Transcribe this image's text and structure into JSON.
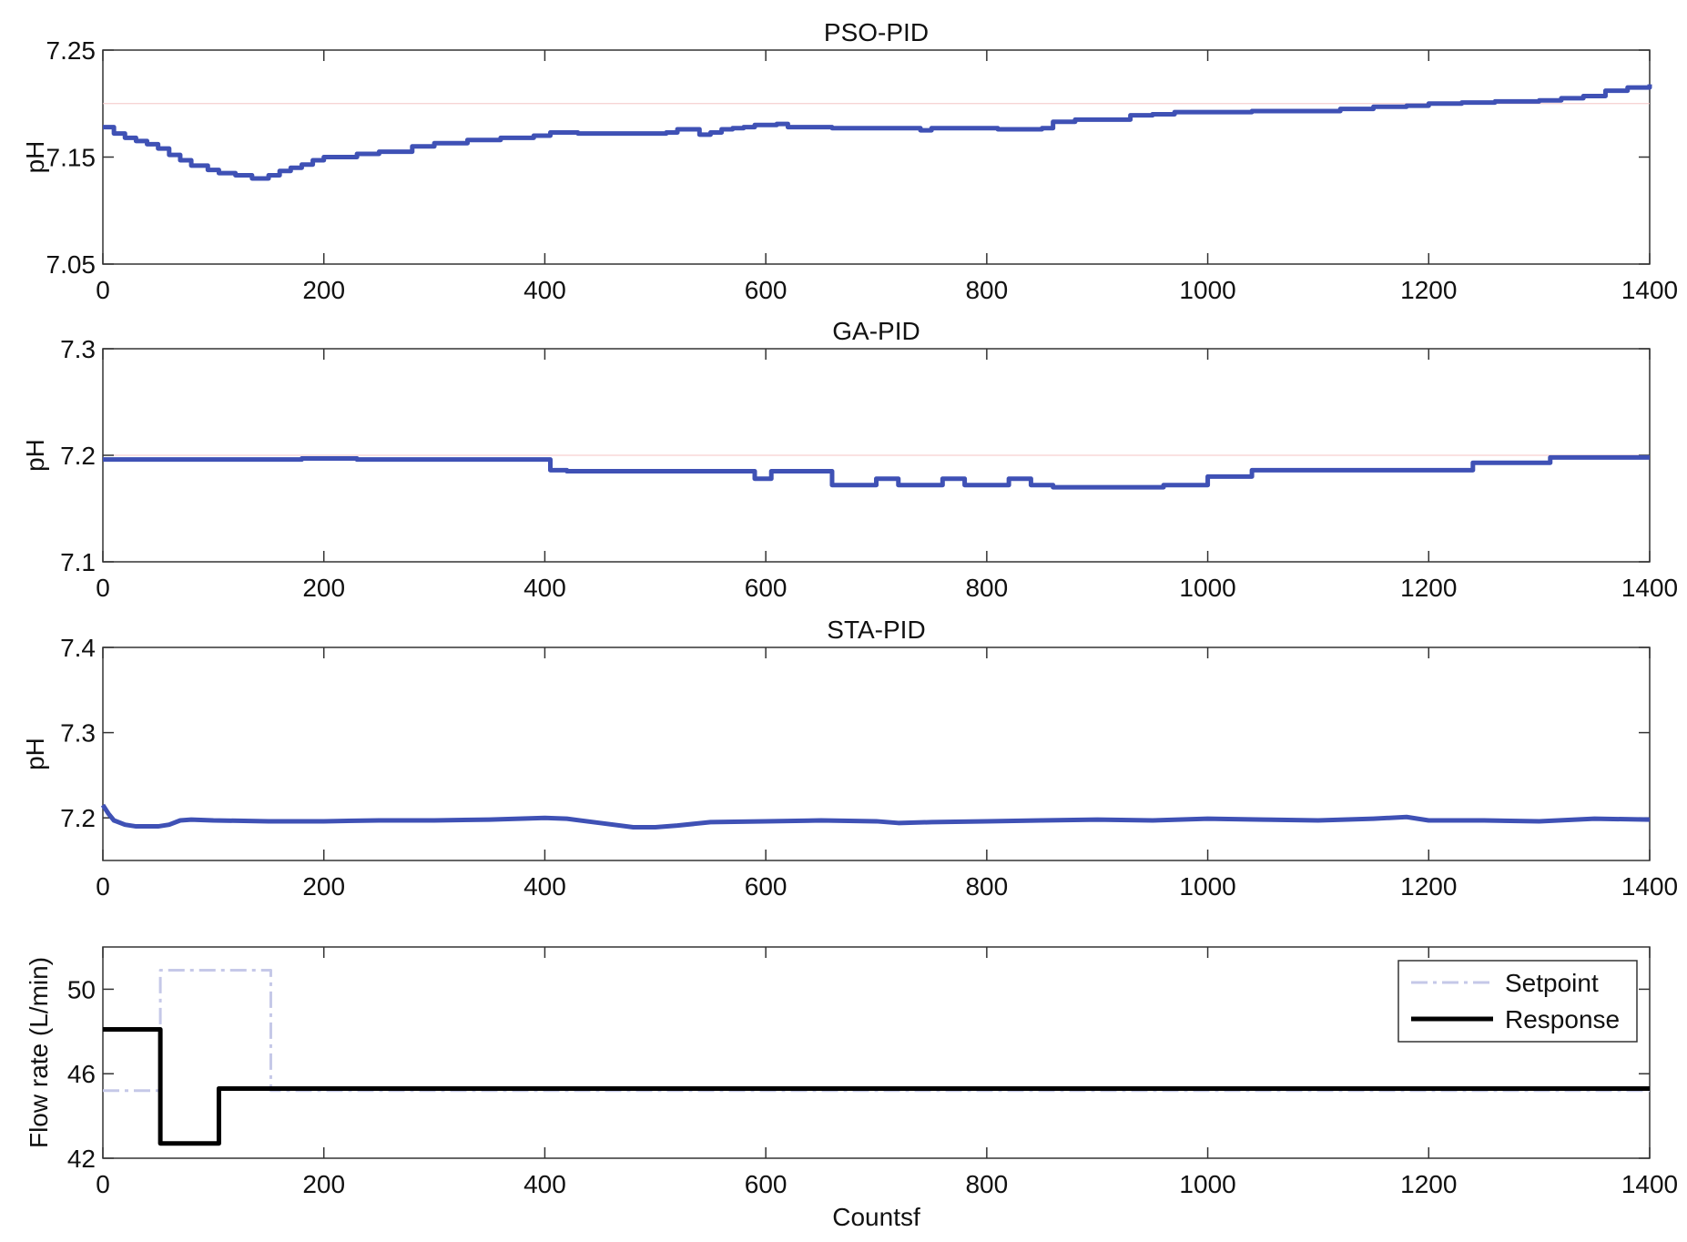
{
  "chart_data": [
    {
      "type": "line",
      "title": "PSO-PID",
      "ylabel": "pH",
      "xlabel": "",
      "xlim": [
        0,
        1400
      ],
      "ylim": [
        7.05,
        7.25
      ],
      "xticks": [
        0,
        200,
        400,
        600,
        800,
        1000,
        1200,
        1400
      ],
      "xtick_labels": [
        "0",
        "200",
        "400",
        "600",
        "800",
        "1000",
        "1200",
        "1400"
      ],
      "yticks": [
        7.05,
        7.15,
        7.25
      ],
      "ytick_labels": [
        "7.05",
        "7.15",
        "7.25"
      ],
      "reference_line": 7.2,
      "grid": false,
      "series": [
        {
          "color": "#3f51b5",
          "step": true,
          "x": [
            0,
            10,
            20,
            30,
            40,
            50,
            60,
            70,
            80,
            95,
            105,
            120,
            135,
            150,
            160,
            170,
            180,
            190,
            200,
            230,
            250,
            280,
            300,
            330,
            360,
            390,
            405,
            430,
            460,
            480,
            500,
            510,
            520,
            540,
            550,
            560,
            570,
            580,
            590,
            610,
            620,
            640,
            660,
            680,
            700,
            720,
            740,
            750,
            780,
            800,
            810,
            850,
            860,
            880,
            900,
            930,
            950,
            970,
            1000,
            1040,
            1080,
            1110,
            1120,
            1150,
            1180,
            1200,
            1230,
            1260,
            1300,
            1320,
            1340,
            1360,
            1380,
            1400
          ],
          "y": [
            7.178,
            7.172,
            7.168,
            7.165,
            7.162,
            7.158,
            7.152,
            7.147,
            7.142,
            7.138,
            7.135,
            7.133,
            7.13,
            7.133,
            7.137,
            7.14,
            7.143,
            7.147,
            7.15,
            7.153,
            7.155,
            7.16,
            7.163,
            7.166,
            7.168,
            7.17,
            7.173,
            7.172,
            7.172,
            7.172,
            7.172,
            7.173,
            7.176,
            7.171,
            7.173,
            7.176,
            7.177,
            7.178,
            7.18,
            7.181,
            7.178,
            7.178,
            7.177,
            7.177,
            7.177,
            7.177,
            7.175,
            7.177,
            7.177,
            7.177,
            7.176,
            7.177,
            7.183,
            7.185,
            7.185,
            7.189,
            7.19,
            7.192,
            7.192,
            7.193,
            7.193,
            7.193,
            7.195,
            7.197,
            7.198,
            7.2,
            7.201,
            7.202,
            7.203,
            7.205,
            7.207,
            7.212,
            7.215,
            7.218
          ]
        }
      ]
    },
    {
      "type": "line",
      "title": "GA-PID",
      "ylabel": "pH",
      "xlabel": "",
      "xlim": [
        0,
        1400
      ],
      "ylim": [
        7.1,
        7.3
      ],
      "xticks": [
        0,
        200,
        400,
        600,
        800,
        1000,
        1200,
        1400
      ],
      "xtick_labels": [
        "0",
        "200",
        "400",
        "600",
        "800",
        "1000",
        "1200",
        "1400"
      ],
      "yticks": [
        7.1,
        7.2,
        7.3
      ],
      "ytick_labels": [
        "7.1",
        "7.2",
        "7.3"
      ],
      "reference_line": 7.2,
      "grid": false,
      "series": [
        {
          "color": "#3f51b5",
          "step": true,
          "x": [
            0,
            180,
            230,
            405,
            420,
            570,
            590,
            605,
            640,
            660,
            680,
            700,
            720,
            740,
            760,
            780,
            800,
            820,
            840,
            860,
            880,
            900,
            930,
            960,
            990,
            1000,
            1040,
            1070,
            1200,
            1240,
            1280,
            1310,
            1330,
            1400
          ],
          "y": [
            7.196,
            7.197,
            7.196,
            7.186,
            7.185,
            7.185,
            7.178,
            7.185,
            7.185,
            7.172,
            7.172,
            7.178,
            7.172,
            7.172,
            7.178,
            7.172,
            7.172,
            7.178,
            7.172,
            7.17,
            7.17,
            7.17,
            7.17,
            7.172,
            7.172,
            7.18,
            7.186,
            7.186,
            7.186,
            7.193,
            7.193,
            7.198,
            7.198,
            7.198
          ]
        }
      ]
    },
    {
      "type": "line",
      "title": "STA-PID",
      "ylabel": "pH",
      "xlabel": "",
      "xlim": [
        0,
        1400
      ],
      "ylim": [
        7.15,
        7.4
      ],
      "xticks": [
        0,
        200,
        400,
        600,
        800,
        1000,
        1200,
        1400
      ],
      "xtick_labels": [
        "0",
        "200",
        "400",
        "600",
        "800",
        "1000",
        "1200",
        "1400"
      ],
      "yticks": [
        7.2,
        7.3,
        7.4
      ],
      "ytick_labels": [
        "7.2",
        "7.3",
        "7.4"
      ],
      "grid": false,
      "series": [
        {
          "color": "#3f51b5",
          "step": false,
          "x": [
            0,
            5,
            10,
            20,
            30,
            50,
            60,
            70,
            80,
            100,
            150,
            200,
            250,
            300,
            350,
            400,
            420,
            450,
            480,
            500,
            520,
            550,
            600,
            650,
            700,
            720,
            750,
            800,
            850,
            900,
            950,
            1000,
            1050,
            1100,
            1150,
            1180,
            1200,
            1250,
            1300,
            1350,
            1400
          ],
          "y": [
            7.215,
            7.205,
            7.197,
            7.192,
            7.19,
            7.19,
            7.192,
            7.197,
            7.198,
            7.197,
            7.196,
            7.196,
            7.197,
            7.197,
            7.198,
            7.2,
            7.199,
            7.194,
            7.189,
            7.189,
            7.191,
            7.195,
            7.196,
            7.197,
            7.196,
            7.194,
            7.195,
            7.196,
            7.197,
            7.198,
            7.197,
            7.199,
            7.198,
            7.197,
            7.199,
            7.201,
            7.197,
            7.197,
            7.196,
            7.199,
            7.198
          ]
        }
      ]
    },
    {
      "type": "line",
      "title": "",
      "ylabel": "Flow rate (L/min)",
      "xlabel": "Countsf",
      "xlim": [
        0,
        1400
      ],
      "ylim": [
        42,
        52
      ],
      "xticks": [
        0,
        200,
        400,
        600,
        800,
        1000,
        1200,
        1400
      ],
      "xtick_labels": [
        "0",
        "200",
        "400",
        "600",
        "800",
        "1000",
        "1200",
        "1400"
      ],
      "yticks": [
        42,
        46,
        50
      ],
      "ytick_labels": [
        "42",
        "46",
        "50"
      ],
      "grid": false,
      "legend": "top-right",
      "series": [
        {
          "name": "Setpoint",
          "color": "#c5c8e8",
          "dash": true,
          "step": true,
          "x": [
            0,
            52,
            52,
            152,
            152,
            1400
          ],
          "y": [
            45.2,
            45.2,
            50.9,
            50.9,
            45.2,
            45.2
          ]
        },
        {
          "name": "Response",
          "color": "#000000",
          "dash": false,
          "step": true,
          "x": [
            0,
            52,
            52,
            105,
            105,
            1400
          ],
          "y": [
            48.1,
            48.1,
            42.7,
            42.7,
            45.3,
            45.3
          ]
        }
      ]
    }
  ]
}
